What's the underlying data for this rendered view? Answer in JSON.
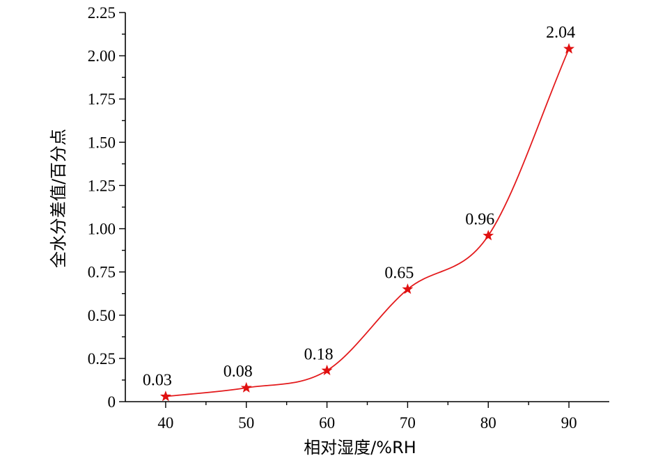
{
  "chart_data": {
    "type": "line",
    "title": "",
    "xlabel": "相对湿度/%RH",
    "ylabel": "全水分差值/百分点",
    "x": [
      40,
      50,
      60,
      70,
      80,
      90
    ],
    "series": [
      {
        "values": [
          0.03,
          0.08,
          0.18,
          0.65,
          0.96,
          2.04
        ]
      }
    ],
    "data_labels": [
      "0.03",
      "0.08",
      "0.18",
      "0.65",
      "0.96",
      "2.04"
    ],
    "xlim": [
      35,
      95
    ],
    "ylim": [
      0,
      2.25
    ],
    "x_ticks": [
      40,
      50,
      60,
      70,
      80,
      90
    ],
    "x_tick_labels": [
      "40",
      "50",
      "60",
      "70",
      "80",
      "90"
    ],
    "x_minor_ticks": [
      45,
      55,
      65,
      75,
      85
    ],
    "y_ticks": [
      0,
      0.25,
      0.5,
      0.75,
      1.0,
      1.25,
      1.5,
      1.75,
      2.0,
      2.25
    ],
    "y_tick_labels": [
      "0",
      "0.25",
      "0.50",
      "0.75",
      "1.00",
      "1.25",
      "1.50",
      "1.75",
      "2.00",
      "2.25"
    ],
    "y_minor_ticks": [
      0.125,
      0.375,
      0.625,
      0.875,
      1.125,
      1.375,
      1.625,
      1.875,
      2.125
    ],
    "marker": "star",
    "grid": false,
    "colors": {
      "series": "#e31a1c",
      "marker": "#e01010",
      "axis": "#000000"
    }
  }
}
